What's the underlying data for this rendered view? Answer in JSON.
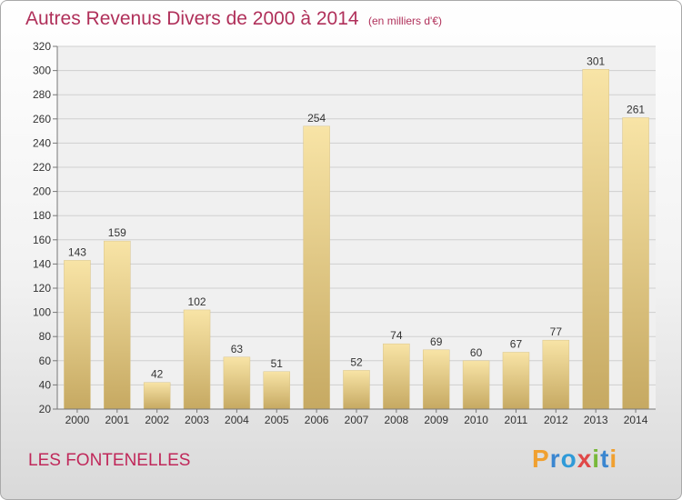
{
  "title": "Autres Revenus Divers de 2000 à 2014",
  "unit_note": "(en milliers d'€)",
  "commune": "LES FONTENELLES",
  "logo": {
    "text": "Proxiti",
    "colors": [
      "#f0a030",
      "#3a86d0",
      "#2f9ad8",
      "#e04848",
      "#78b83a",
      "#3a86d0",
      "#f0a030"
    ]
  },
  "colors": {
    "bar_light": "#f7e2a2",
    "bar_dark": "#c8ac64",
    "title": "#b0305a"
  },
  "chart_data": {
    "type": "bar",
    "categories": [
      "2000",
      "2001",
      "2002",
      "2003",
      "2004",
      "2005",
      "2006",
      "2007",
      "2008",
      "2009",
      "2010",
      "2011",
      "2012",
      "2013",
      "2014"
    ],
    "values": [
      143,
      159,
      42,
      102,
      63,
      51,
      254,
      52,
      74,
      69,
      60,
      67,
      77,
      301,
      261
    ],
    "ylim": [
      20,
      320
    ],
    "yticks": [
      20,
      40,
      60,
      80,
      100,
      120,
      140,
      160,
      180,
      200,
      220,
      240,
      260,
      280,
      300,
      320
    ],
    "grid": true,
    "xlabel": "",
    "ylabel": ""
  }
}
